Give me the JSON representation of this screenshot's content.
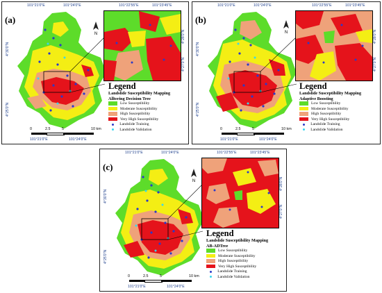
{
  "legend": {
    "title": "Legend",
    "classes": [
      {
        "label": "Low Susceptibility",
        "color": "#5ddc2a"
      },
      {
        "label": "Moderate Susceptibility",
        "color": "#f4ee14"
      },
      {
        "label": "High Susceptibility",
        "color": "#efa27a"
      },
      {
        "label": "Very High Susceptibility",
        "color": "#e5131b"
      }
    ],
    "points": [
      {
        "label": "Landslide Training",
        "color": "#2b39c9"
      },
      {
        "label": "Landslide Validation",
        "color": "#38d7ee"
      }
    ]
  },
  "panels": [
    {
      "id": "(a)",
      "subtitle_line1": "Landslide Susceptibility Mapping",
      "subtitle_line2": "Alltering Decision Tree"
    },
    {
      "id": "(b)",
      "subtitle_line1": "Landslide Susceptibility Mapping",
      "subtitle_line2": "Adaptive Boosting"
    },
    {
      "id": "(c)",
      "subtitle_line1": "Landslide Susceptibility Mapping",
      "subtitle_line2": "AB-ADTree"
    }
  ],
  "coords": {
    "top_left": "101°21'0\"E",
    "top_mid": "101°24'0\"E",
    "zoom_top_left": "101°22'55\"E",
    "zoom_top_right": "101°23'45\"E",
    "bottom_left": "101°21'0\"E",
    "bottom_mid": "101°24'0\"E",
    "lat_upper": "4°30'0\"N",
    "lat_lower": "4°25'0\"N",
    "zoom_lat_upper": "4°28'0\"N",
    "zoom_lat_lower": "4°27'0\"N"
  },
  "scale": {
    "ticks": [
      "0",
      "2.5",
      "5",
      "10 km"
    ]
  },
  "north_label": "N"
}
